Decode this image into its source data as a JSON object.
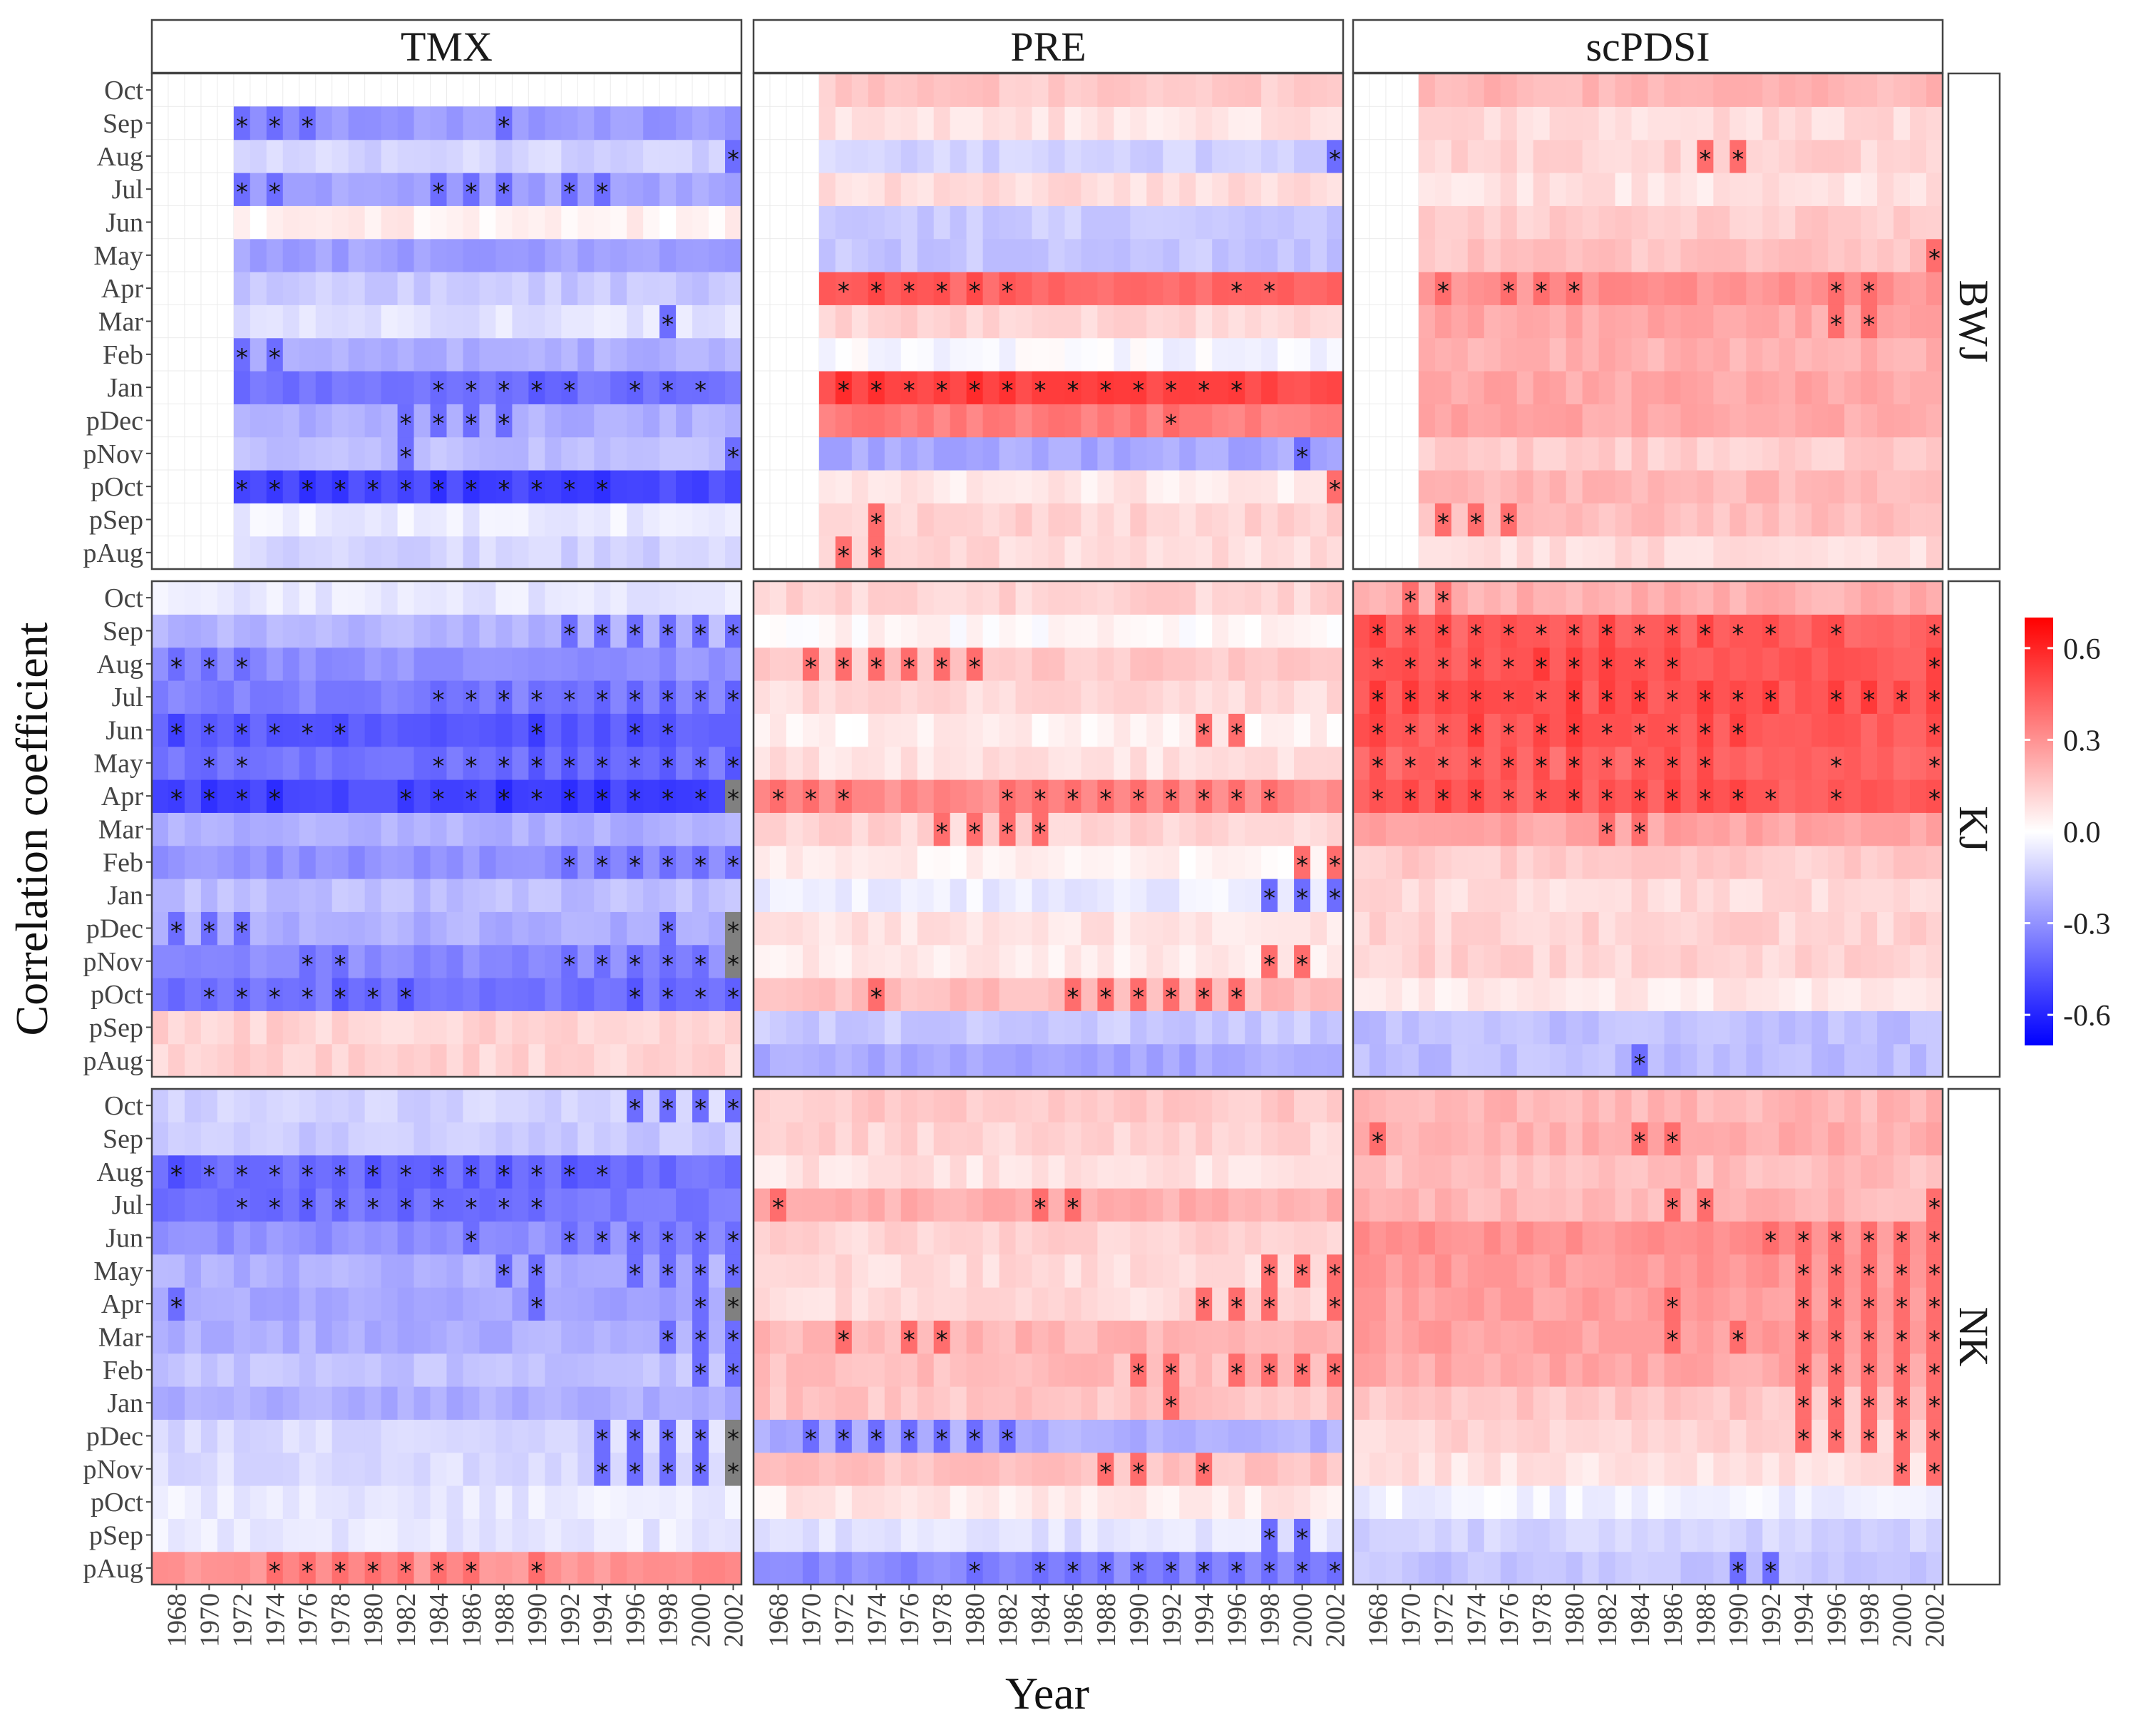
{
  "colors": {
    "low": "#0000ff",
    "mid": "#ffffff",
    "high": "#ff0000",
    "na": "#808080",
    "grid": "#ebebeb"
  },
  "chart_data": {
    "type": "heatmap",
    "xlabel": "Year",
    "ylabel": "Correlation coefficient",
    "columns": [
      "TMX",
      "PRE",
      "scPDSI"
    ],
    "rows": [
      "BWJ",
      "KJ",
      "NK"
    ],
    "months": [
      "pAug",
      "pSep",
      "pOct",
      "pNov",
      "pDec",
      "Jan",
      "Feb",
      "Mar",
      "Apr",
      "May",
      "Jun",
      "Jul",
      "Aug",
      "Sep",
      "Oct"
    ],
    "years": [
      1967,
      1968,
      1969,
      1970,
      1971,
      1972,
      1973,
      1974,
      1975,
      1976,
      1977,
      1978,
      1979,
      1980,
      1981,
      1982,
      1983,
      1984,
      1985,
      1986,
      1987,
      1988,
      1989,
      1990,
      1991,
      1992,
      1993,
      1994,
      1995,
      1996,
      1997,
      1998,
      1999,
      2000,
      2001,
      2002
    ],
    "x_tick_labels": [
      "1968",
      "1970",
      "1972",
      "1974",
      "1976",
      "1978",
      "1980",
      "1982",
      "1984",
      "1986",
      "1988",
      "1990",
      "1992",
      "1994",
      "1996",
      "1998",
      "2000",
      "2002"
    ],
    "color_scale": {
      "limits": [
        -0.7,
        0.7
      ],
      "breaks": [
        -0.6,
        -0.3,
        0.0,
        0.3,
        0.6
      ],
      "break_labels": [
        "-0.6",
        "-0.3",
        "0.0",
        "0.3",
        "0.6"
      ]
    },
    "panels": [
      {
        "variable": "TMX",
        "site": "BWJ",
        "start_year": 1972,
        "end_year": 2002,
        "na_years": [],
        "monthly_r": {
          "Oct": null,
          "Sep": -0.28,
          "Aug": -0.12,
          "Jul": -0.25,
          "Jun": 0.04,
          "May": -0.26,
          "Apr": -0.15,
          "Mar": -0.08,
          "Feb": -0.22,
          "Jan": -0.38,
          "pDec": -0.22,
          "pNov": -0.18,
          "pOct": -0.5,
          "pSep": -0.05,
          "pAug": -0.12
        },
        "stars": {
          "Sep": [
            1972,
            1974,
            1976,
            1988
          ],
          "Aug": [
            2002
          ],
          "Jul": [
            1972,
            1974,
            1984,
            1986,
            1988,
            1992,
            1994
          ],
          "Feb": [
            1972,
            1974
          ],
          "Mar": [
            1998
          ],
          "Jan": [
            1984,
            1986,
            1988,
            1990,
            1992,
            1996,
            1998,
            2000
          ],
          "pDec": [
            1982,
            1984,
            1986,
            1988
          ],
          "pNov": [
            1982,
            2002
          ],
          "pOct": [
            1972,
            1974,
            1976,
            1978,
            1980,
            1982,
            1984,
            1986,
            1988,
            1990,
            1992,
            1994
          ]
        }
      },
      {
        "variable": "PRE",
        "site": "BWJ",
        "start_year": 1971,
        "end_year": 2002,
        "na_years": [],
        "monthly_r": {
          "Oct": 0.15,
          "Sep": 0.08,
          "Aug": -0.12,
          "Jul": 0.1,
          "Jun": -0.14,
          "May": -0.16,
          "Apr": 0.42,
          "Mar": 0.12,
          "Feb": -0.02,
          "Jan": 0.5,
          "pDec": 0.36,
          "pNov": -0.24,
          "pOct": 0.06,
          "pSep": 0.12,
          "pAug": 0.1
        },
        "stars": {
          "Aug": [
            2002
          ],
          "Apr": [
            1972,
            1974,
            1976,
            1978,
            1980,
            1982,
            1996,
            1998
          ],
          "Jan": [
            1972,
            1974,
            1976,
            1978,
            1980,
            1982,
            1984,
            1986,
            1988,
            1990,
            1992,
            1994,
            1996
          ],
          "pDec": [
            1992
          ],
          "pNov": [
            2000
          ],
          "pOct": [
            2002
          ],
          "pSep": [
            1974
          ],
          "pAug": [
            1972,
            1974
          ]
        }
      },
      {
        "variable": "scPDSI",
        "site": "BWJ",
        "start_year": 1971,
        "end_year": 2002,
        "na_years": [],
        "monthly_r": {
          "Oct": 0.2,
          "Sep": 0.1,
          "Aug": 0.12,
          "Jul": 0.08,
          "Jun": 0.14,
          "May": 0.16,
          "Apr": 0.3,
          "Mar": 0.24,
          "Feb": 0.22,
          "Jan": 0.24,
          "pDec": 0.24,
          "pNov": 0.14,
          "pOct": 0.2,
          "pSep": 0.18,
          "pAug": 0.1
        },
        "stars": {
          "Aug": [
            1988,
            1990
          ],
          "May": [
            2002
          ],
          "Apr": [
            1972,
            1976,
            1978,
            1980,
            1996,
            1998
          ],
          "Mar": [
            1996,
            1998
          ],
          "pSep": [
            1972,
            1974,
            1976
          ]
        }
      },
      {
        "variable": "TMX",
        "site": "KJ",
        "start_year": 1967,
        "end_year": 2002,
        "na_years": [
          2002
        ],
        "monthly_r": {
          "Oct": -0.06,
          "Sep": -0.2,
          "Aug": -0.3,
          "Jul": -0.35,
          "Jun": -0.45,
          "May": -0.38,
          "Apr": -0.5,
          "Mar": -0.22,
          "Feb": -0.3,
          "Jan": -0.18,
          "pDec": -0.22,
          "pNov": -0.32,
          "pOct": -0.38,
          "pSep": 0.12,
          "pAug": 0.12
        },
        "stars": {
          "Sep": [
            1992,
            1994,
            1996,
            1998,
            2000,
            2002
          ],
          "Aug": [
            1968,
            1970,
            1972
          ],
          "Jul": [
            1984,
            1986,
            1988,
            1990,
            1992,
            1994,
            1996,
            1998,
            2000,
            2002
          ],
          "Jun": [
            1968,
            1970,
            1972,
            1974,
            1976,
            1978,
            1990,
            1996,
            1998
          ],
          "May": [
            1970,
            1972,
            1984,
            1986,
            1988,
            1990,
            1992,
            1994,
            1996,
            1998,
            2000,
            2002
          ],
          "Apr": [
            1968,
            1970,
            1972,
            1974,
            1982,
            1984,
            1986,
            1988,
            1990,
            1992,
            1994,
            1996,
            1998,
            2000,
            2002
          ],
          "Feb": [
            1992,
            1994,
            1996,
            1998,
            2000,
            2002
          ],
          "pDec": [
            1968,
            1970,
            1972,
            1998,
            2002
          ],
          "pNov": [
            1976,
            1978,
            1992,
            1994,
            1996,
            1998,
            2000,
            2002
          ],
          "pOct": [
            1970,
            1972,
            1974,
            1976,
            1978,
            1980,
            1982,
            1996,
            1998,
            2000,
            2002
          ]
        }
      },
      {
        "variable": "PRE",
        "site": "KJ",
        "start_year": 1967,
        "end_year": 2002,
        "na_years": [],
        "monthly_r": {
          "Oct": 0.12,
          "Sep": 0.02,
          "Aug": 0.15,
          "Jul": 0.1,
          "Jun": 0.04,
          "May": 0.08,
          "Apr": 0.32,
          "Mar": 0.12,
          "Feb": 0.04,
          "Jan": -0.05,
          "pDec": 0.08,
          "pNov": 0.06,
          "pOct": 0.18,
          "pSep": -0.15,
          "pAug": -0.24
        },
        "stars": {
          "Aug": [
            1970,
            1972,
            1974,
            1976,
            1978,
            1980
          ],
          "Jun": [
            1994,
            1996
          ],
          "Apr": [
            1968,
            1970,
            1972,
            1982,
            1984,
            1986,
            1988,
            1990,
            1992,
            1994,
            1996,
            1998
          ],
          "Mar": [
            1978,
            1980,
            1982,
            1984
          ],
          "Feb": [
            2000,
            2002
          ],
          "Jan": [
            1998,
            2000,
            2002
          ],
          "pNov": [
            1998,
            2000
          ],
          "pOct": [
            1974,
            1986,
            1988,
            1990,
            1992,
            1994,
            1996
          ]
        }
      },
      {
        "variable": "scPDSI",
        "site": "KJ",
        "start_year": 1967,
        "end_year": 2002,
        "na_years": [],
        "monthly_r": {
          "Oct": 0.22,
          "Sep": 0.44,
          "Aug": 0.46,
          "Jul": 0.46,
          "Jun": 0.45,
          "May": 0.42,
          "Apr": 0.44,
          "Mar": 0.25,
          "Feb": 0.14,
          "Jan": 0.1,
          "pDec": 0.12,
          "pNov": 0.12,
          "pOct": 0.06,
          "pSep": -0.18,
          "pAug": -0.18
        },
        "stars": {
          "Oct": [
            1970,
            1972
          ],
          "Sep": [
            1968,
            1970,
            1972,
            1974,
            1976,
            1978,
            1980,
            1982,
            1984,
            1986,
            1988,
            1990,
            1992,
            1996,
            2002
          ],
          "Aug": [
            1968,
            1970,
            1972,
            1974,
            1976,
            1978,
            1980,
            1982,
            1984,
            1986,
            2002
          ],
          "Jul": [
            1968,
            1970,
            1972,
            1974,
            1976,
            1978,
            1980,
            1982,
            1984,
            1986,
            1988,
            1990,
            1992,
            1996,
            1998,
            2000,
            2002
          ],
          "Jun": [
            1968,
            1970,
            1972,
            1974,
            1976,
            1978,
            1980,
            1982,
            1984,
            1986,
            1988,
            1990,
            2002
          ],
          "May": [
            1968,
            1970,
            1972,
            1974,
            1976,
            1978,
            1980,
            1982,
            1984,
            1986,
            1988,
            1996,
            2002
          ],
          "Apr": [
            1968,
            1970,
            1972,
            1974,
            1976,
            1978,
            1980,
            1982,
            1984,
            1986,
            1988,
            1990,
            1992,
            1996,
            2002
          ],
          "Mar": [
            1982,
            1984
          ],
          "pAug": [
            1984
          ]
        }
      },
      {
        "variable": "TMX",
        "site": "NK",
        "start_year": 1967,
        "end_year": 2002,
        "na_years": [
          2002
        ],
        "monthly_r": {
          "Oct": -0.12,
          "Sep": -0.15,
          "Aug": -0.4,
          "Jul": -0.38,
          "Jun": -0.3,
          "May": -0.22,
          "Apr": -0.24,
          "Mar": -0.22,
          "Feb": -0.16,
          "Jan": -0.22,
          "pDec": -0.1,
          "pNov": -0.1,
          "pOct": -0.06,
          "pSep": -0.06,
          "pAug": 0.3
        },
        "stars": {
          "Oct": [
            1996,
            1998,
            2000,
            2002
          ],
          "Aug": [
            1968,
            1970,
            1972,
            1974,
            1976,
            1978,
            1980,
            1982,
            1984,
            1986,
            1988,
            1990,
            1992,
            1994
          ],
          "Jul": [
            1972,
            1974,
            1976,
            1978,
            1980,
            1982,
            1984,
            1986,
            1988,
            1990
          ],
          "Jun": [
            1986,
            1992,
            1994,
            1996,
            1998,
            2000,
            2002
          ],
          "May": [
            1988,
            1990,
            1996,
            1998,
            2000,
            2002
          ],
          "Apr": [
            1968,
            1990,
            2000,
            2002
          ],
          "Mar": [
            1998,
            2000,
            2002
          ],
          "Feb": [
            2000,
            2002
          ],
          "pDec": [
            1994,
            1996,
            1998,
            2000,
            2002
          ],
          "pNov": [
            1994,
            1996,
            1998,
            2000,
            2002
          ],
          "pAug": [
            1974,
            1976,
            1978,
            1980,
            1982,
            1984,
            1986,
            1990
          ]
        }
      },
      {
        "variable": "PRE",
        "site": "NK",
        "start_year": 1967,
        "end_year": 2002,
        "na_years": [],
        "monthly_r": {
          "Oct": 0.15,
          "Sep": 0.12,
          "Aug": 0.08,
          "Jul": 0.22,
          "Jun": 0.12,
          "May": 0.1,
          "Apr": 0.1,
          "Mar": 0.2,
          "Feb": 0.18,
          "Jan": 0.16,
          "pDec": -0.22,
          "pNov": 0.16,
          "pOct": 0.06,
          "pSep": -0.08,
          "pAug": -0.32
        },
        "stars": {
          "Jul": [
            1968,
            1984,
            1986
          ],
          "May": [
            1998,
            2000,
            2002
          ],
          "Apr": [
            1994,
            1996,
            1998,
            2002
          ],
          "Mar": [
            1972,
            1976,
            1978
          ],
          "Feb": [
            1990,
            1992,
            1996,
            1998,
            2000,
            2002
          ],
          "Jan": [
            1992
          ],
          "pDec": [
            1970,
            1972,
            1974,
            1976,
            1978,
            1980,
            1982
          ],
          "pNov": [
            1988,
            1990,
            1994
          ],
          "pSep": [
            1998,
            2000
          ],
          "pAug": [
            1980,
            1984,
            1986,
            1988,
            1990,
            1992,
            1994,
            1996,
            1998,
            2000,
            2002
          ]
        }
      },
      {
        "variable": "scPDSI",
        "site": "NK",
        "start_year": 1967,
        "end_year": 2002,
        "na_years": [],
        "monthly_r": {
          "Oct": 0.2,
          "Sep": 0.22,
          "Aug": 0.18,
          "Jul": 0.2,
          "Jun": 0.3,
          "May": 0.28,
          "Apr": 0.26,
          "Mar": 0.26,
          "Feb": 0.24,
          "Jan": 0.16,
          "pDec": 0.12,
          "pNov": 0.08,
          "pOct": -0.04,
          "pSep": -0.12,
          "pAug": -0.16
        },
        "stars": {
          "Sep": [
            1968,
            1984,
            1986
          ],
          "Jul": [
            1986,
            1988,
            2002
          ],
          "Jun": [
            1992,
            1994,
            1996,
            1998,
            2000,
            2002
          ],
          "May": [
            1994,
            1996,
            1998,
            2000,
            2002
          ],
          "Apr": [
            1986,
            1994,
            1996,
            1998,
            2000,
            2002
          ],
          "Mar": [
            1986,
            1990,
            1994,
            1996,
            1998,
            2000,
            2002
          ],
          "Feb": [
            1994,
            1996,
            1998,
            2000,
            2002
          ],
          "Jan": [
            1994,
            1996,
            1998,
            2000,
            2002
          ],
          "pDec": [
            1994,
            1996,
            1998,
            2000,
            2002
          ],
          "pNov": [
            2000,
            2002
          ],
          "pAug": [
            1990,
            1992
          ]
        }
      }
    ]
  }
}
